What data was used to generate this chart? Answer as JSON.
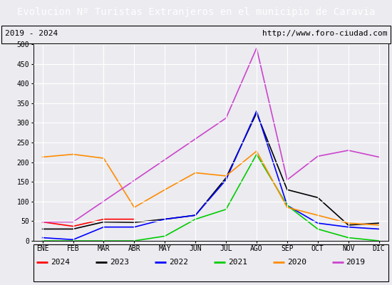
{
  "title": "Evolucion Nº Turistas Extranjeros en el municipio de Caravia",
  "title_color": "#ffffff",
  "title_bg_color": "#4472c4",
  "subtitle_left": "2019 - 2024",
  "subtitle_right": "http://www.foro-ciudad.com",
  "months": [
    "ENE",
    "FEB",
    "MAR",
    "ABR",
    "MAY",
    "JUN",
    "JUL",
    "AGO",
    "SEP",
    "OCT",
    "NOV",
    "DIC"
  ],
  "ylim": [
    0,
    500
  ],
  "yticks": [
    0,
    50,
    100,
    150,
    200,
    250,
    300,
    350,
    400,
    450,
    500
  ],
  "series": {
    "2024": {
      "color": "#ff0000",
      "values": [
        48,
        37,
        55,
        55,
        null,
        null,
        null,
        null,
        null,
        null,
        null,
        null
      ]
    },
    "2023": {
      "color": "#000000",
      "values": [
        30,
        30,
        48,
        47,
        55,
        65,
        160,
        325,
        130,
        110,
        40,
        45
      ]
    },
    "2022": {
      "color": "#0000ff",
      "values": [
        8,
        3,
        35,
        35,
        55,
        65,
        155,
        330,
        90,
        45,
        35,
        30
      ]
    },
    "2021": {
      "color": "#00cc00",
      "values": [
        0,
        0,
        0,
        0,
        12,
        55,
        80,
        220,
        90,
        30,
        8,
        0
      ]
    },
    "2020": {
      "color": "#ff8c00",
      "values": [
        213,
        220,
        210,
        85,
        130,
        173,
        165,
        228,
        85,
        65,
        45,
        40
      ]
    },
    "2019": {
      "color": "#cc44cc",
      "values": [
        48,
        48,
        null,
        null,
        null,
        null,
        312,
        490,
        155,
        215,
        230,
        213
      ]
    }
  },
  "legend_order": [
    "2024",
    "2023",
    "2022",
    "2021",
    "2020",
    "2019"
  ],
  "bg_color": "#ebebf0",
  "grid_color": "#ffffff",
  "border_color": "#000000",
  "title_fontsize": 10,
  "subtitle_fontsize": 8,
  "tick_fontsize": 7,
  "legend_fontsize": 8
}
